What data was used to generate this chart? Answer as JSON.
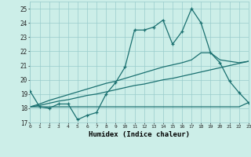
{
  "xlabel": "Humidex (Indice chaleur)",
  "bg_color": "#cceee8",
  "grid_color": "#99cccc",
  "line_color": "#1a7070",
  "x_values": [
    0,
    1,
    2,
    3,
    4,
    5,
    6,
    7,
    8,
    9,
    10,
    11,
    12,
    13,
    14,
    15,
    16,
    17,
    18,
    19,
    20,
    21,
    22,
    23
  ],
  "y_main": [
    19.2,
    18.1,
    18.0,
    18.3,
    18.3,
    17.2,
    17.5,
    17.7,
    19.0,
    19.8,
    20.9,
    23.5,
    23.5,
    23.7,
    24.2,
    22.5,
    23.4,
    25.0,
    24.0,
    21.9,
    21.2,
    19.9,
    19.1,
    18.4
  ],
  "y_line1": [
    18.1,
    18.1,
    18.1,
    18.1,
    18.1,
    18.1,
    18.1,
    18.1,
    18.1,
    18.1,
    18.1,
    18.1,
    18.1,
    18.1,
    18.1,
    18.1,
    18.1,
    18.1,
    18.1,
    18.1,
    18.1,
    18.1,
    18.1,
    18.4
  ],
  "y_line2": [
    18.1,
    18.2,
    18.35,
    18.5,
    18.6,
    18.75,
    18.9,
    19.0,
    19.15,
    19.3,
    19.45,
    19.6,
    19.7,
    19.85,
    20.0,
    20.1,
    20.25,
    20.4,
    20.55,
    20.7,
    20.85,
    21.0,
    21.15,
    21.3
  ],
  "y_line3": [
    18.1,
    18.3,
    18.55,
    18.75,
    18.95,
    19.15,
    19.35,
    19.55,
    19.75,
    19.9,
    20.1,
    20.3,
    20.5,
    20.7,
    20.9,
    21.05,
    21.2,
    21.4,
    21.9,
    21.9,
    21.4,
    21.3,
    21.2,
    21.3
  ],
  "ylim": [
    17,
    25.5
  ],
  "xlim": [
    0,
    23
  ],
  "yticks": [
    17,
    18,
    19,
    20,
    21,
    22,
    23,
    24,
    25
  ],
  "xticks": [
    0,
    1,
    2,
    3,
    4,
    5,
    6,
    7,
    8,
    9,
    10,
    11,
    12,
    13,
    14,
    15,
    16,
    17,
    18,
    19,
    20,
    21,
    22,
    23
  ]
}
